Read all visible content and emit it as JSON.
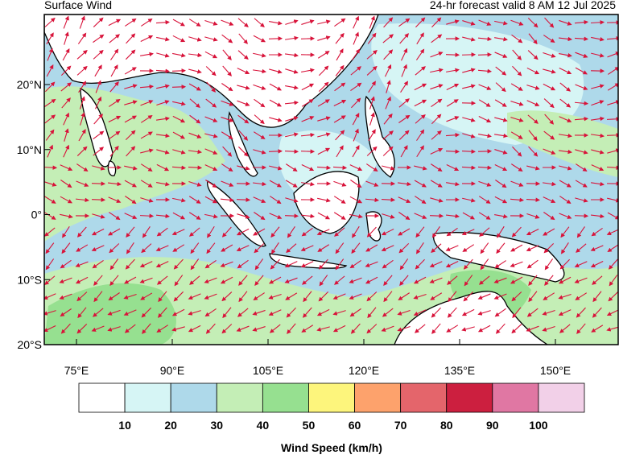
{
  "header": {
    "title": "Surface Wind",
    "subtitle": "24-hr forecast valid 8 AM 12 Jul 2025"
  },
  "map": {
    "lat_labels": [
      "20°N",
      "10°N",
      "0°",
      "10°S",
      "20°S"
    ],
    "lon_labels": [
      "75°E",
      "90°E",
      "105°E",
      "120°E",
      "135°E",
      "150°E"
    ]
  },
  "colorbar": {
    "levels": [
      10,
      20,
      30,
      40,
      50,
      60,
      70,
      80,
      90,
      100
    ],
    "colors": [
      "#ffffff",
      "#d6f5f5",
      "#aed9ea",
      "#c4eeb6",
      "#96e090",
      "#fdf57c",
      "#fda26c",
      "#e4656b",
      "#cc1f3f",
      "#e077a3",
      "#f2d0e8"
    ],
    "label": "Wind Speed (km/h)"
  }
}
